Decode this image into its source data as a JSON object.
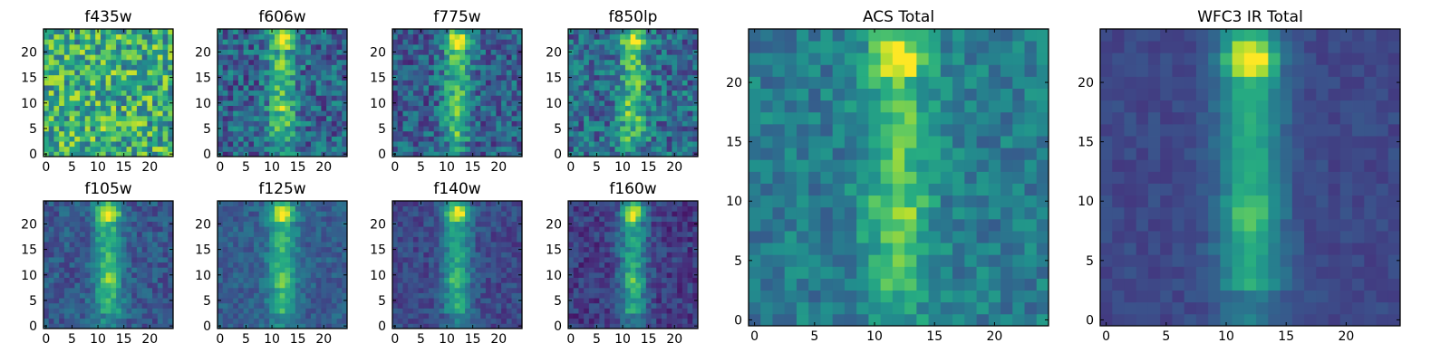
{
  "figure": {
    "layout": "2x4 grid of small panels on the left, two large panels on the right",
    "colormap": "viridis",
    "colors": {
      "low": "#440154",
      "mid": "#21918c",
      "high": "#fde725"
    }
  },
  "chart_data": [
    {
      "type": "heatmap",
      "title": "f435w",
      "xlim": [
        0,
        24
      ],
      "ylim": [
        0,
        24
      ],
      "xticks": [
        0,
        5,
        10,
        15,
        20
      ],
      "yticks": [
        0,
        5,
        10,
        15,
        20
      ],
      "grid": false,
      "description_pattern": "noise",
      "source": {
        "center_x": 12,
        "noise": 0.3,
        "bias": 0.62,
        "scale": 0.05
      }
    },
    {
      "type": "heatmap",
      "title": "f606w",
      "xlim": [
        0,
        24
      ],
      "ylim": [
        0,
        24
      ],
      "xticks": [
        0,
        5,
        10,
        15,
        20
      ],
      "yticks": [
        0,
        5,
        10,
        15,
        20
      ],
      "grid": false,
      "source": {
        "center_x": 12,
        "noise": 0.22,
        "bias": 0.32,
        "scale": 0.8
      }
    },
    {
      "type": "heatmap",
      "title": "f775w",
      "xlim": [
        0,
        24
      ],
      "ylim": [
        0,
        24
      ],
      "xticks": [
        0,
        5,
        10,
        15,
        20
      ],
      "yticks": [
        0,
        5,
        10,
        15,
        20
      ],
      "grid": false,
      "source": {
        "center_x": 12,
        "noise": 0.2,
        "bias": 0.3,
        "scale": 0.85
      }
    },
    {
      "type": "heatmap",
      "title": "f850lp",
      "xlim": [
        0,
        24
      ],
      "ylim": [
        0,
        24
      ],
      "xticks": [
        0,
        5,
        10,
        15,
        20
      ],
      "yticks": [
        0,
        5,
        10,
        15,
        20
      ],
      "grid": false,
      "source": {
        "center_x": 12,
        "noise": 0.22,
        "bias": 0.35,
        "scale": 0.75
      }
    },
    {
      "type": "heatmap",
      "title": "f105w",
      "xlim": [
        0,
        24
      ],
      "ylim": [
        0,
        24
      ],
      "xticks": [
        0,
        5,
        10,
        15,
        20
      ],
      "yticks": [
        0,
        5,
        10,
        15,
        20
      ],
      "grid": false,
      "source": {
        "center_x": 12,
        "noise": 0.12,
        "bias": 0.28,
        "scale": 0.85
      }
    },
    {
      "type": "heatmap",
      "title": "f125w",
      "xlim": [
        0,
        24
      ],
      "ylim": [
        0,
        24
      ],
      "xticks": [
        0,
        5,
        10,
        15,
        20
      ],
      "yticks": [
        0,
        5,
        10,
        15,
        20
      ],
      "grid": false,
      "source": {
        "center_x": 12,
        "noise": 0.1,
        "bias": 0.3,
        "scale": 0.8
      }
    },
    {
      "type": "heatmap",
      "title": "f140w",
      "xlim": [
        0,
        24
      ],
      "ylim": [
        0,
        24
      ],
      "xticks": [
        0,
        5,
        10,
        15,
        20
      ],
      "yticks": [
        0,
        5,
        10,
        15,
        20
      ],
      "grid": false,
      "source": {
        "center_x": 12,
        "noise": 0.1,
        "bias": 0.22,
        "scale": 0.85
      }
    },
    {
      "type": "heatmap",
      "title": "f160w",
      "xlim": [
        0,
        24
      ],
      "ylim": [
        0,
        24
      ],
      "xticks": [
        0,
        5,
        10,
        15,
        20
      ],
      "yticks": [
        0,
        5,
        10,
        15,
        20
      ],
      "grid": false,
      "source": {
        "center_x": 12,
        "noise": 0.12,
        "bias": 0.18,
        "scale": 0.9
      }
    },
    {
      "type": "heatmap",
      "title": "ACS Total",
      "xlim": [
        0,
        24
      ],
      "ylim": [
        0,
        24
      ],
      "xticks": [
        0,
        5,
        10,
        15,
        20
      ],
      "yticks": [
        0,
        5,
        10,
        15,
        20
      ],
      "grid": false,
      "source": {
        "center_x": 12,
        "noise": 0.13,
        "bias": 0.42,
        "scale": 0.7
      }
    },
    {
      "type": "heatmap",
      "title": "WFC3 IR Total",
      "xlim": [
        0,
        24
      ],
      "ylim": [
        0,
        24
      ],
      "xticks": [
        0,
        5,
        10,
        15,
        20
      ],
      "yticks": [
        0,
        5,
        10,
        15,
        20
      ],
      "grid": false,
      "source": {
        "center_x": 12,
        "noise": 0.05,
        "bias": 0.22,
        "scale": 0.9
      }
    }
  ]
}
